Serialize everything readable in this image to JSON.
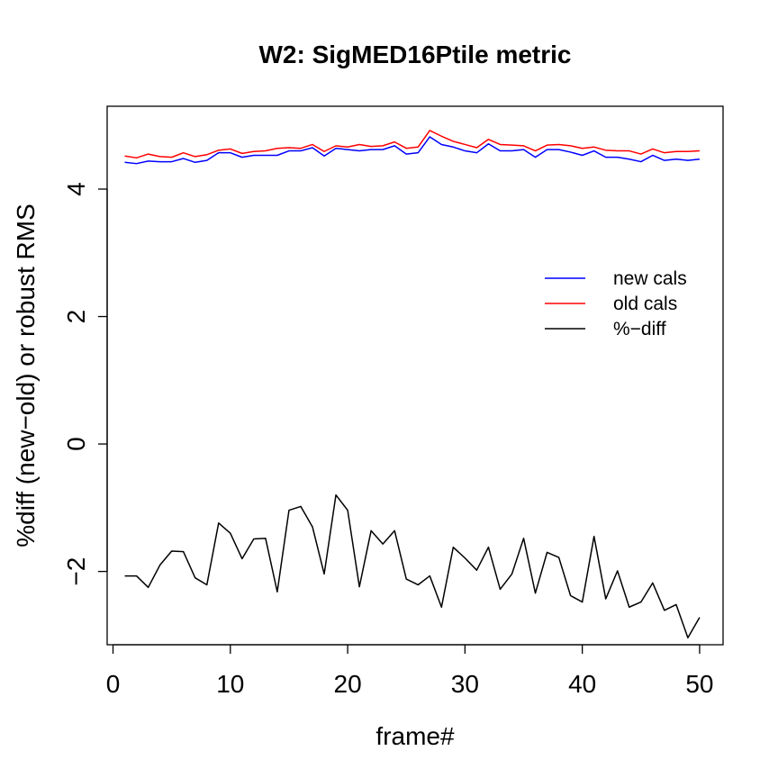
{
  "chart_data": {
    "type": "line",
    "title": "W2: SigMED16Ptile metric",
    "xlabel": "frame#",
    "ylabel": "%diff (new−old) or robust RMS",
    "xlim": [
      -0.5,
      52
    ],
    "ylim": [
      -3.15,
      5.3
    ],
    "xticks": [
      0,
      10,
      20,
      30,
      40,
      50
    ],
    "yticks": [
      -2,
      0,
      2,
      4
    ],
    "ytick_labels": [
      "−2",
      "0",
      "2",
      "4"
    ],
    "grid": false,
    "legend_position": "right",
    "x": [
      1,
      2,
      3,
      4,
      5,
      6,
      7,
      8,
      9,
      10,
      11,
      12,
      13,
      14,
      15,
      16,
      17,
      18,
      19,
      20,
      21,
      22,
      23,
      24,
      25,
      26,
      27,
      28,
      29,
      30,
      31,
      32,
      33,
      34,
      35,
      36,
      37,
      38,
      39,
      40,
      41,
      42,
      43,
      44,
      45,
      46,
      47,
      48,
      49,
      50
    ],
    "series": [
      {
        "name": "new cals",
        "color": "#0000ff",
        "values": [
          4.42,
          4.4,
          4.44,
          4.43,
          4.43,
          4.48,
          4.42,
          4.45,
          4.57,
          4.57,
          4.5,
          4.53,
          4.53,
          4.53,
          4.6,
          4.6,
          4.65,
          4.52,
          4.64,
          4.62,
          4.6,
          4.62,
          4.62,
          4.68,
          4.55,
          4.57,
          4.82,
          4.7,
          4.66,
          4.6,
          4.57,
          4.71,
          4.6,
          4.6,
          4.62,
          4.5,
          4.62,
          4.62,
          4.58,
          4.53,
          4.6,
          4.5,
          4.5,
          4.47,
          4.43,
          4.53,
          4.45,
          4.47,
          4.45,
          4.47
        ]
      },
      {
        "name": "old cals",
        "color": "#ff0000",
        "values": [
          4.52,
          4.49,
          4.55,
          4.51,
          4.5,
          4.57,
          4.51,
          4.54,
          4.61,
          4.63,
          4.56,
          4.59,
          4.6,
          4.64,
          4.65,
          4.64,
          4.7,
          4.59,
          4.68,
          4.66,
          4.7,
          4.67,
          4.68,
          4.74,
          4.64,
          4.66,
          4.92,
          4.83,
          4.75,
          4.7,
          4.65,
          4.78,
          4.7,
          4.69,
          4.68,
          4.6,
          4.69,
          4.7,
          4.68,
          4.64,
          4.66,
          4.61,
          4.6,
          4.6,
          4.55,
          4.63,
          4.57,
          4.59,
          4.59,
          4.6
        ]
      },
      {
        "name": "%−diff",
        "color": "#000000",
        "values": [
          -2.07,
          -2.07,
          -2.25,
          -1.9,
          -1.68,
          -1.69,
          -2.1,
          -2.21,
          -1.24,
          -1.4,
          -1.8,
          -1.49,
          -1.48,
          -2.32,
          -1.04,
          -0.98,
          -1.3,
          -2.04,
          -0.8,
          -1.04,
          -2.24,
          -1.36,
          -1.57,
          -1.36,
          -2.12,
          -2.21,
          -2.07,
          -2.56,
          -1.62,
          -1.79,
          -1.98,
          -1.62,
          -2.28,
          -2.04,
          -1.48,
          -2.34,
          -1.7,
          -1.78,
          -2.38,
          -2.48,
          -1.45,
          -2.43,
          -1.99,
          -2.56,
          -2.48,
          -2.18,
          -2.61,
          -2.52,
          -3.04,
          -2.72
        ]
      }
    ]
  }
}
